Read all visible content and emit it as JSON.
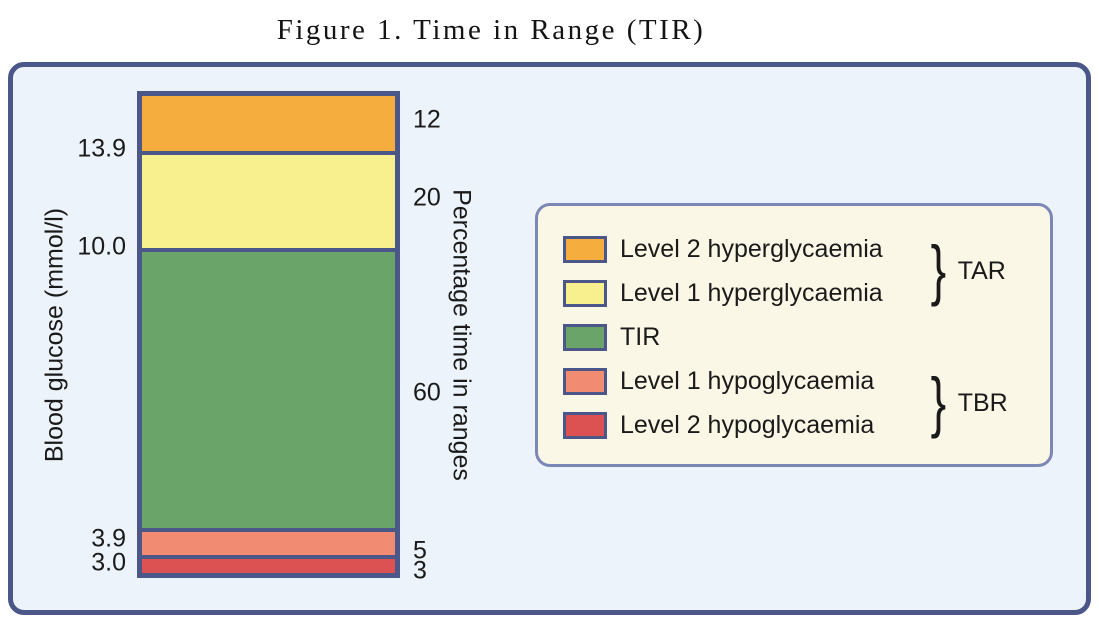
{
  "chart_data": {
    "type": "bar",
    "variant": "single-stacked-column",
    "title": "Figure 1. Time in Range (TIR)",
    "ylabel_left": "Blood glucose (mmol/l)",
    "ylabel_right": "Percentage time in ranges",
    "ylim_percent": [
      0,
      100
    ],
    "legend_position": "right",
    "glucose_ticks": [
      "13.9",
      "10.0",
      "3.9",
      "3.0"
    ],
    "segments": [
      {
        "label": "Level 2 hyperglycaemia",
        "percent": 12,
        "color": "#f5ad3d"
      },
      {
        "label": "Level 1 hyperglycaemia",
        "percent": 20,
        "color": "#f8f08e"
      },
      {
        "label": "TIR",
        "percent": 60,
        "color": "#6ba469"
      },
      {
        "label": "Level 1 hypoglycaemia",
        "percent": 5,
        "color": "#f18c72"
      },
      {
        "label": "Level 2 hypoglycaemia",
        "percent": 3,
        "color": "#dc5252"
      }
    ],
    "groups": [
      {
        "label": "TAR",
        "brace": "}",
        "covers": [
          0,
          1
        ]
      },
      {
        "label": "TBR",
        "brace": "}",
        "covers": [
          3,
          4
        ]
      }
    ]
  },
  "colors": {
    "outline": "#4a5788",
    "panel_background": "#edf3fa",
    "legend_background": "#fbf7e6",
    "legend_border": "#7d87b5",
    "text": "#1a1a1a"
  }
}
